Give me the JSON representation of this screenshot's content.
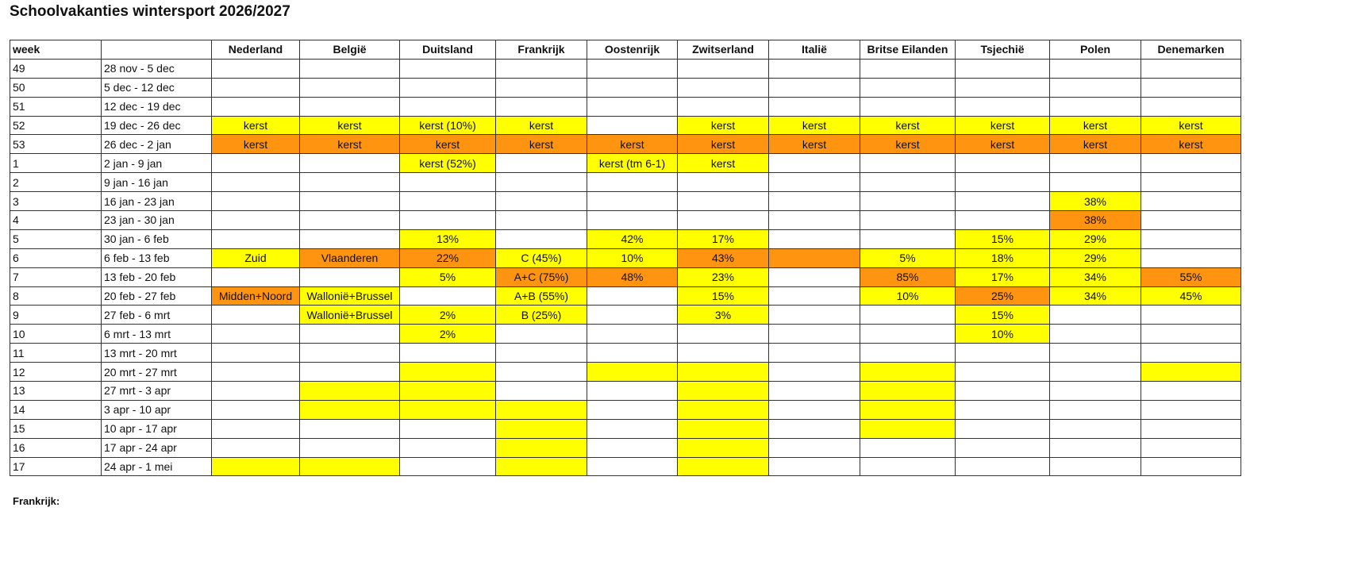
{
  "title": "Schoolvakanties wintersport 2026/2027",
  "colors": {
    "y": "#ffff00",
    "o": "#ff9410",
    "": "#ffffff"
  },
  "columns": [
    "week",
    "",
    "Nederland",
    "België",
    "Duitsland",
    "Frankrijk",
    "Oostenrijk",
    "Zwitserland",
    "Italië",
    "Britse Eilanden",
    "Tsjechië",
    "Polen",
    "Denemarken"
  ],
  "rows": [
    {
      "week": "49",
      "dates": "28 nov - 5 dec",
      "cells": [
        [
          "",
          ""
        ],
        [
          "",
          ""
        ],
        [
          "",
          ""
        ],
        [
          "",
          ""
        ],
        [
          "",
          ""
        ],
        [
          "",
          ""
        ],
        [
          "",
          ""
        ],
        [
          "",
          ""
        ],
        [
          "",
          ""
        ],
        [
          "",
          ""
        ],
        [
          "",
          ""
        ]
      ]
    },
    {
      "week": "50",
      "dates": "5 dec - 12 dec",
      "cells": [
        [
          "",
          ""
        ],
        [
          "",
          ""
        ],
        [
          "",
          ""
        ],
        [
          "",
          ""
        ],
        [
          "",
          ""
        ],
        [
          "",
          ""
        ],
        [
          "",
          ""
        ],
        [
          "",
          ""
        ],
        [
          "",
          ""
        ],
        [
          "",
          ""
        ],
        [
          "",
          ""
        ]
      ]
    },
    {
      "week": "51",
      "dates": "12 dec - 19 dec",
      "cells": [
        [
          "",
          ""
        ],
        [
          "",
          ""
        ],
        [
          "",
          ""
        ],
        [
          "",
          ""
        ],
        [
          "",
          ""
        ],
        [
          "",
          ""
        ],
        [
          "",
          ""
        ],
        [
          "",
          ""
        ],
        [
          "",
          ""
        ],
        [
          "",
          ""
        ],
        [
          "",
          ""
        ]
      ]
    },
    {
      "week": "52",
      "dates": "19 dec - 26 dec",
      "cells": [
        [
          "kerst",
          "y"
        ],
        [
          "kerst",
          "y"
        ],
        [
          "kerst (10%)",
          "y"
        ],
        [
          "kerst",
          "y"
        ],
        [
          "",
          ""
        ],
        [
          "kerst",
          "y"
        ],
        [
          "kerst",
          "y"
        ],
        [
          "kerst",
          "y"
        ],
        [
          "kerst",
          "y"
        ],
        [
          "kerst",
          "y"
        ],
        [
          "kerst",
          "y"
        ]
      ]
    },
    {
      "week": "53",
      "dates": "26 dec - 2 jan",
      "cells": [
        [
          "kerst",
          "o"
        ],
        [
          "kerst",
          "o"
        ],
        [
          "kerst",
          "o"
        ],
        [
          "kerst",
          "o"
        ],
        [
          "kerst",
          "o"
        ],
        [
          "kerst",
          "o"
        ],
        [
          "kerst",
          "o"
        ],
        [
          "kerst",
          "o"
        ],
        [
          "kerst",
          "o"
        ],
        [
          "kerst",
          "o"
        ],
        [
          "kerst",
          "o"
        ]
      ]
    },
    {
      "week": "1",
      "dates": "2 jan - 9 jan",
      "cells": [
        [
          "",
          ""
        ],
        [
          "",
          ""
        ],
        [
          "kerst (52%)",
          "y"
        ],
        [
          "",
          ""
        ],
        [
          "kerst (tm 6-1)",
          "y"
        ],
        [
          "kerst",
          "y"
        ],
        [
          "",
          ""
        ],
        [
          "",
          ""
        ],
        [
          "",
          ""
        ],
        [
          "",
          ""
        ],
        [
          "",
          ""
        ]
      ]
    },
    {
      "week": "2",
      "dates": "9 jan - 16 jan",
      "cells": [
        [
          "",
          ""
        ],
        [
          "",
          ""
        ],
        [
          "",
          ""
        ],
        [
          "",
          ""
        ],
        [
          "",
          ""
        ],
        [
          "",
          ""
        ],
        [
          "",
          ""
        ],
        [
          "",
          ""
        ],
        [
          "",
          ""
        ],
        [
          "",
          ""
        ],
        [
          "",
          ""
        ]
      ]
    },
    {
      "week": "3",
      "dates": "16 jan - 23 jan",
      "cells": [
        [
          "",
          ""
        ],
        [
          "",
          ""
        ],
        [
          "",
          ""
        ],
        [
          "",
          ""
        ],
        [
          "",
          ""
        ],
        [
          "",
          ""
        ],
        [
          "",
          ""
        ],
        [
          "",
          ""
        ],
        [
          "",
          ""
        ],
        [
          "38%",
          "y"
        ],
        [
          "",
          ""
        ]
      ]
    },
    {
      "week": "4",
      "dates": "23 jan - 30 jan",
      "cells": [
        [
          "",
          ""
        ],
        [
          "",
          ""
        ],
        [
          "",
          ""
        ],
        [
          "",
          ""
        ],
        [
          "",
          ""
        ],
        [
          "",
          ""
        ],
        [
          "",
          ""
        ],
        [
          "",
          ""
        ],
        [
          "",
          ""
        ],
        [
          "38%",
          "o"
        ],
        [
          "",
          ""
        ]
      ]
    },
    {
      "week": "5",
      "dates": "30 jan - 6 feb",
      "cells": [
        [
          "",
          ""
        ],
        [
          "",
          ""
        ],
        [
          "13%",
          "y"
        ],
        [
          "",
          ""
        ],
        [
          "42%",
          "y"
        ],
        [
          "17%",
          "y"
        ],
        [
          "",
          ""
        ],
        [
          "",
          ""
        ],
        [
          "15%",
          "y"
        ],
        [
          "29%",
          "y"
        ],
        [
          "",
          ""
        ]
      ]
    },
    {
      "week": "6",
      "dates": "6 feb - 13 feb",
      "cells": [
        [
          "Zuid",
          "y"
        ],
        [
          "Vlaanderen",
          "o"
        ],
        [
          "22%",
          "o"
        ],
        [
          "C (45%)",
          "y"
        ],
        [
          "10%",
          "y"
        ],
        [
          "43%",
          "o"
        ],
        [
          "",
          "o"
        ],
        [
          "5%",
          "y"
        ],
        [
          "18%",
          "y"
        ],
        [
          "29%",
          "y"
        ],
        [
          "",
          ""
        ]
      ]
    },
    {
      "week": "7",
      "dates": "13 feb - 20 feb",
      "cells": [
        [
          "",
          ""
        ],
        [
          "",
          ""
        ],
        [
          "5%",
          "y"
        ],
        [
          "A+C (75%)",
          "o"
        ],
        [
          "48%",
          "o"
        ],
        [
          "23%",
          "y"
        ],
        [
          "",
          ""
        ],
        [
          "85%",
          "o"
        ],
        [
          "17%",
          "y"
        ],
        [
          "34%",
          "y"
        ],
        [
          "55%",
          "o"
        ]
      ]
    },
    {
      "week": "8",
      "dates": "20 feb - 27 feb",
      "cells": [
        [
          "Midden+Noord",
          "o"
        ],
        [
          "Wallonië+Brussel",
          "y"
        ],
        [
          "",
          ""
        ],
        [
          "A+B (55%)",
          "y"
        ],
        [
          "",
          ""
        ],
        [
          "15%",
          "y"
        ],
        [
          "",
          ""
        ],
        [
          "10%",
          "y"
        ],
        [
          "25%",
          "o"
        ],
        [
          "34%",
          "y"
        ],
        [
          "45%",
          "y"
        ]
      ]
    },
    {
      "week": "9",
      "dates": "27 feb - 6 mrt",
      "cells": [
        [
          "",
          ""
        ],
        [
          "Wallonië+Brussel",
          "y"
        ],
        [
          "2%",
          "y"
        ],
        [
          "B (25%)",
          "y"
        ],
        [
          "",
          ""
        ],
        [
          "3%",
          "y"
        ],
        [
          "",
          ""
        ],
        [
          "",
          ""
        ],
        [
          "15%",
          "y"
        ],
        [
          "",
          ""
        ],
        [
          "",
          ""
        ]
      ]
    },
    {
      "week": "10",
      "dates": "6 mrt - 13 mrt",
      "cells": [
        [
          "",
          ""
        ],
        [
          "",
          ""
        ],
        [
          "2%",
          "y"
        ],
        [
          "",
          ""
        ],
        [
          "",
          ""
        ],
        [
          "",
          ""
        ],
        [
          "",
          ""
        ],
        [
          "",
          ""
        ],
        [
          "10%",
          "y"
        ],
        [
          "",
          ""
        ],
        [
          "",
          ""
        ]
      ]
    },
    {
      "week": "11",
      "dates": "13 mrt - 20 mrt",
      "cells": [
        [
          "",
          ""
        ],
        [
          "",
          ""
        ],
        [
          "",
          ""
        ],
        [
          "",
          ""
        ],
        [
          "",
          ""
        ],
        [
          "",
          ""
        ],
        [
          "",
          ""
        ],
        [
          "",
          ""
        ],
        [
          "",
          ""
        ],
        [
          "",
          ""
        ],
        [
          "",
          ""
        ]
      ]
    },
    {
      "week": "12",
      "dates": "20 mrt - 27 mrt",
      "cells": [
        [
          "",
          ""
        ],
        [
          "",
          ""
        ],
        [
          "",
          "y"
        ],
        [
          "",
          ""
        ],
        [
          "",
          "y"
        ],
        [
          "",
          "y"
        ],
        [
          "",
          ""
        ],
        [
          "",
          "y"
        ],
        [
          "",
          ""
        ],
        [
          "",
          ""
        ],
        [
          "",
          "y"
        ]
      ]
    },
    {
      "week": "13",
      "dates": "27 mrt - 3 apr",
      "cells": [
        [
          "",
          ""
        ],
        [
          "",
          "y"
        ],
        [
          "",
          "y"
        ],
        [
          "",
          ""
        ],
        [
          "",
          ""
        ],
        [
          "",
          "y"
        ],
        [
          "",
          ""
        ],
        [
          "",
          "y"
        ],
        [
          "",
          ""
        ],
        [
          "",
          ""
        ],
        [
          "",
          ""
        ]
      ]
    },
    {
      "week": "14",
      "dates": "3 apr - 10 apr",
      "cells": [
        [
          "",
          ""
        ],
        [
          "",
          "y"
        ],
        [
          "",
          "y"
        ],
        [
          "",
          "y"
        ],
        [
          "",
          ""
        ],
        [
          "",
          "y"
        ],
        [
          "",
          ""
        ],
        [
          "",
          "y"
        ],
        [
          "",
          ""
        ],
        [
          "",
          ""
        ],
        [
          "",
          ""
        ]
      ]
    },
    {
      "week": "15",
      "dates": "10 apr - 17 apr",
      "cells": [
        [
          "",
          ""
        ],
        [
          "",
          ""
        ],
        [
          "",
          ""
        ],
        [
          "",
          "y"
        ],
        [
          "",
          ""
        ],
        [
          "",
          "y"
        ],
        [
          "",
          ""
        ],
        [
          "",
          "y"
        ],
        [
          "",
          ""
        ],
        [
          "",
          ""
        ],
        [
          "",
          ""
        ]
      ]
    },
    {
      "week": "16",
      "dates": "17 apr - 24 apr",
      "cells": [
        [
          "",
          ""
        ],
        [
          "",
          ""
        ],
        [
          "",
          ""
        ],
        [
          "",
          "y"
        ],
        [
          "",
          ""
        ],
        [
          "",
          "y"
        ],
        [
          "",
          ""
        ],
        [
          "",
          ""
        ],
        [
          "",
          ""
        ],
        [
          "",
          ""
        ],
        [
          "",
          ""
        ]
      ]
    },
    {
      "week": "17",
      "dates": "24 apr - 1 mei",
      "cells": [
        [
          "",
          "y"
        ],
        [
          "",
          "y"
        ],
        [
          "",
          ""
        ],
        [
          "",
          "y"
        ],
        [
          "",
          ""
        ],
        [
          "",
          "y"
        ],
        [
          "",
          ""
        ],
        [
          "",
          ""
        ],
        [
          "",
          ""
        ],
        [
          "",
          ""
        ],
        [
          "",
          ""
        ]
      ]
    }
  ],
  "notes": {
    "frankrijk_heading": "Frankrijk:"
  }
}
